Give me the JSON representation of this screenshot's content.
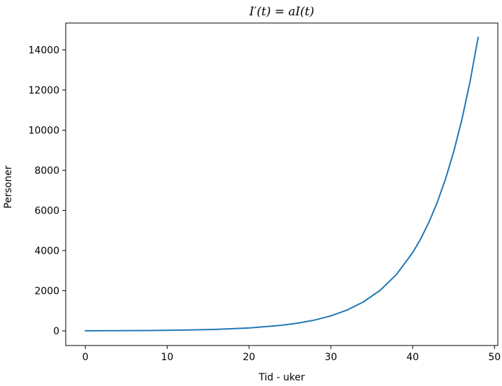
{
  "chart_data": {
    "type": "line",
    "title": "I′(t) = aI(t)",
    "xlabel": "Tid - uker",
    "ylabel": "Personer",
    "xlim": [
      -2.4,
      50.4
    ],
    "ylim": [
      -730,
      15340
    ],
    "xticks": [
      0,
      10,
      20,
      30,
      40,
      50
    ],
    "yticks": [
      0,
      2000,
      4000,
      6000,
      8000,
      10000,
      12000,
      14000
    ],
    "grid": false,
    "legend": "none",
    "series": [
      {
        "color": "#1f77b4",
        "x": [
          0,
          4,
          8,
          12,
          16,
          20,
          24,
          26,
          28,
          30,
          32,
          34,
          36,
          38,
          40,
          41,
          42,
          43,
          44,
          45,
          46,
          47,
          48
        ],
        "y": [
          5,
          10,
          20,
          38,
          74,
          143,
          277,
          386,
          537,
          747,
          1040,
          1448,
          2014,
          2802,
          3900,
          4601,
          5428,
          6403,
          7554,
          8911,
          10513,
          12402,
          14631
        ]
      }
    ]
  }
}
